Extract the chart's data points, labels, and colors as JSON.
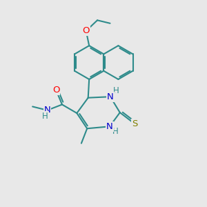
{
  "bg_color": "#e8e8e8",
  "bond_color": "#2e8b8b",
  "bond_width": 1.5,
  "atom_colors": {
    "O": "#ff0000",
    "N": "#0000cd",
    "S": "#808000",
    "C": "#2e8b8b",
    "H": "#2e8b8b"
  },
  "font_size": 8.5,
  "fig_size": [
    3.0,
    3.0
  ],
  "dpi": 100
}
